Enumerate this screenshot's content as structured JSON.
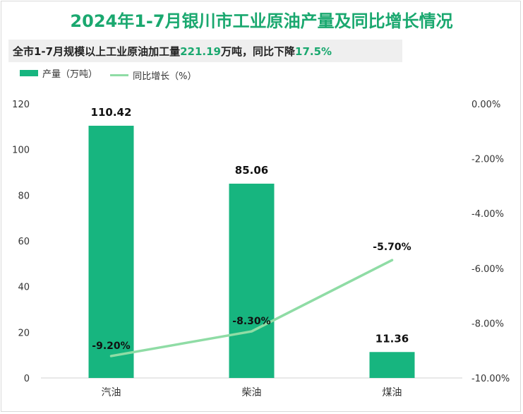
{
  "title": "2024年1-7月银川市工业原油产量及同比增长情况",
  "summary": {
    "prefix": "全市1-7月规模以上工业原油加工量",
    "amount": "221.19",
    "mid": "万吨，同比下降",
    "rate": "17.5%"
  },
  "colors": {
    "title": "#1aa86f",
    "bar": "#17b57f",
    "line": "#8fdca5"
  },
  "chart_data": {
    "type": "bar",
    "categories": [
      "汽油",
      "柴油",
      "煤油"
    ],
    "series": [
      {
        "name": "产量（万吨）",
        "type": "bar",
        "axis": "left",
        "values": [
          110.42,
          85.06,
          11.36
        ],
        "labels": [
          "110.42",
          "85.06",
          "11.36"
        ]
      },
      {
        "name": "同比增长（%）",
        "type": "line",
        "axis": "right",
        "values": [
          -9.2,
          -8.3,
          -5.7
        ],
        "labels": [
          "-9.20%",
          "-8.30%",
          "-5.70%"
        ]
      }
    ],
    "y_left": {
      "min": 0,
      "max": 120,
      "ticks": [
        0,
        20,
        40,
        60,
        80,
        100,
        120
      ]
    },
    "y_right": {
      "min": -10,
      "max": 0,
      "ticks": [
        "0.00%",
        "-2.00%",
        "-4.00%",
        "-6.00%",
        "-8.00%",
        "-10.00%"
      ],
      "tick_values": [
        0,
        -2,
        -4,
        -6,
        -8,
        -10
      ]
    },
    "legend_position": "top-left",
    "grid": false
  }
}
